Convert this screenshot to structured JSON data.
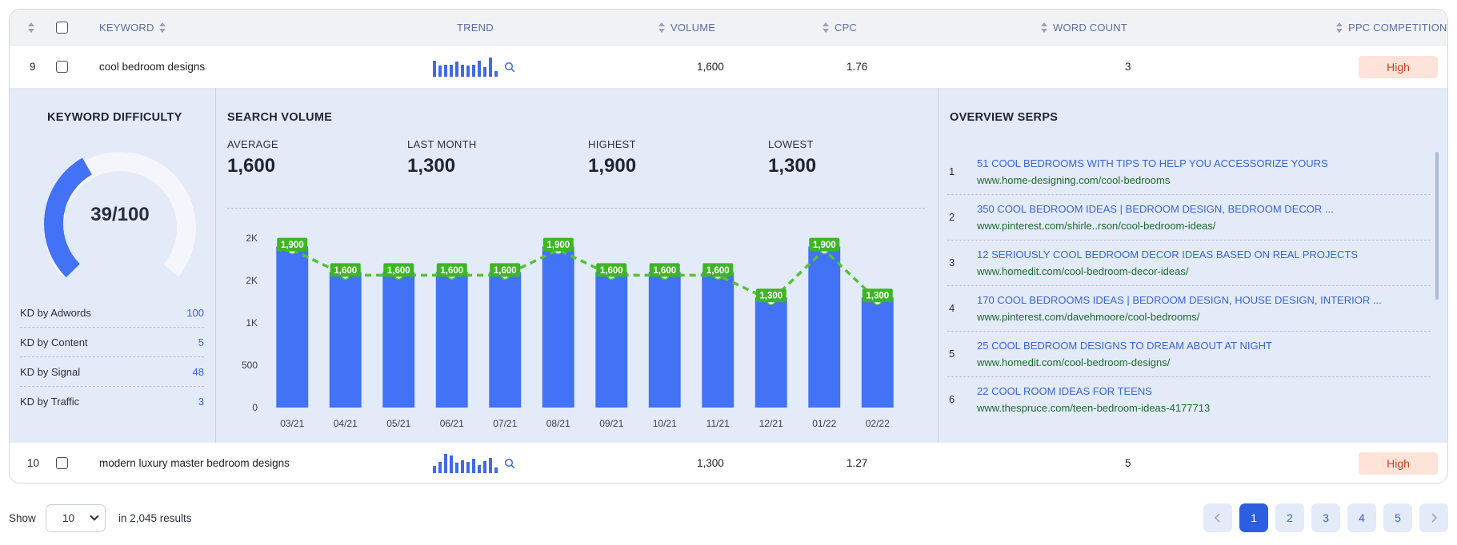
{
  "columns": {
    "keyword": "KEYWORD",
    "trend": "TREND",
    "volume": "VOLUME",
    "cpc": "CPC",
    "word_count": "WORD COUNT",
    "ppc_competition": "PPC COMPETITION"
  },
  "rows": [
    {
      "num": "9",
      "keyword": "cool bedroom designs",
      "volume": "1,600",
      "cpc": "1.76",
      "word_count": "3",
      "ppc": "High",
      "trend": [
        0.75,
        0.5,
        0.55,
        0.55,
        0.7,
        0.55,
        0.5,
        0.55,
        0.75,
        0.4,
        0.9,
        0.2
      ]
    },
    {
      "num": "10",
      "keyword": "modern luxury master bedroom designs",
      "volume": "1,300",
      "cpc": "1.27",
      "word_count": "5",
      "ppc": "High",
      "trend": [
        0.3,
        0.5,
        0.9,
        0.85,
        0.45,
        0.6,
        0.5,
        0.65,
        0.35,
        0.55,
        0.7,
        0.2
      ]
    }
  ],
  "keyword_difficulty": {
    "title": "KEYWORD DIFFICULTY",
    "score": 39,
    "label": "39/100",
    "breakdown": [
      {
        "label": "KD by Adwords",
        "value": "100"
      },
      {
        "label": "KD by Content",
        "value": "5"
      },
      {
        "label": "KD by Signal",
        "value": "48"
      },
      {
        "label": "KD by Traffic",
        "value": "3"
      }
    ]
  },
  "search_volume": {
    "title": "SEARCH VOLUME",
    "stats": [
      {
        "label": "AVERAGE",
        "value": "1,600"
      },
      {
        "label": "LAST MONTH",
        "value": "1,300"
      },
      {
        "label": "HIGHEST",
        "value": "1,900"
      },
      {
        "label": "LOWEST",
        "value": "1,300"
      }
    ]
  },
  "chart_data": {
    "type": "bar",
    "categories": [
      "03/21",
      "04/21",
      "05/21",
      "06/21",
      "07/21",
      "08/21",
      "09/21",
      "10/21",
      "11/21",
      "12/21",
      "01/22",
      "02/22"
    ],
    "values": [
      1900,
      1600,
      1600,
      1600,
      1600,
      1900,
      1600,
      1600,
      1600,
      1300,
      1900,
      1300
    ],
    "data_labels": [
      "1,900",
      "1,600",
      "1,600",
      "1,600",
      "1,600",
      "1,900",
      "1,600",
      "1,600",
      "1,600",
      "1,300",
      "1,900",
      "1,300"
    ],
    "y_ticks": [
      {
        "value": 0,
        "label": "0"
      },
      {
        "value": 500,
        "label": "500"
      },
      {
        "value": 1000,
        "label": "1K"
      },
      {
        "value": 1500,
        "label": "2K"
      },
      {
        "value": 2000,
        "label": "2K"
      }
    ],
    "ylim": [
      0,
      2000
    ],
    "bar_color": "#4272f5",
    "line_color": "#53c234",
    "label_bg": "#3eb525",
    "line_style": "dashed",
    "grid": false
  },
  "serps": {
    "title": "OVERVIEW SERPS",
    "items": [
      {
        "num": "1",
        "title": "51 COOL BEDROOMS WITH TIPS TO HELP YOU ACCESSORIZE YOURS",
        "url": "www.home-designing.com/cool-bedrooms"
      },
      {
        "num": "2",
        "title": "350 COOL BEDROOM IDEAS | BEDROOM DESIGN, BEDROOM DECOR ...",
        "url": "www.pinterest.com/shirle..rson/cool-bedroom-ideas/"
      },
      {
        "num": "3",
        "title": "12 SERIOUSLY COOL BEDROOM DECOR IDEAS BASED ON REAL PROJECTS",
        "url": "www.homedit.com/cool-bedroom-decor-ideas/"
      },
      {
        "num": "4",
        "title": "170 COOL BEDROOMS IDEAS | BEDROOM DESIGN, HOUSE DESIGN, INTERIOR ...",
        "url": "www.pinterest.com/davehmoore/cool-bedrooms/"
      },
      {
        "num": "5",
        "title": "25 COOL BEDROOM DESIGNS TO DREAM ABOUT AT NIGHT",
        "url": "www.homedit.com/cool-bedroom-designs/"
      },
      {
        "num": "6",
        "title": "22 COOL ROOM IDEAS FOR TEENS",
        "url": "www.thespruce.com/teen-bedroom-ideas-4177713"
      }
    ]
  },
  "footer": {
    "show_label": "Show",
    "page_size": "10",
    "results_text": "in 2,045 results",
    "pages": [
      "1",
      "2",
      "3",
      "4",
      "5"
    ],
    "current_page": "1"
  },
  "icons": {
    "sort": "sort-icon",
    "search": "magnifier-icon",
    "prev": "chevron-left-icon",
    "next": "chevron-right-icon"
  },
  "colors": {
    "accent": "#2c5fe0",
    "panel_bg": "#e3eaf8",
    "high_badge_bg": "#fde3d9",
    "high_badge_text": "#d0401f",
    "url_green": "#1e6b2e",
    "gauge_fill": "#4272f5",
    "gauge_track": "#f4f6fb"
  }
}
